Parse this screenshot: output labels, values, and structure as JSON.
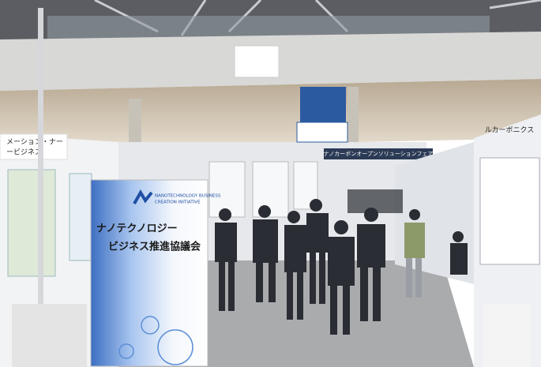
{
  "banner": {
    "logo": [
      "NANOTECHNOLOGY BUSINESS",
      "CREATION INITIATIVE"
    ],
    "title": [
      "ナノテクノロジー",
      "ビジネス推進協議会"
    ]
  },
  "signs": {
    "hanging": "ナノカーボンオープンソリューションフェア",
    "left_booth": [
      "メーション・ナー",
      "ービジネス"
    ],
    "right_booth": "ルカーボニクス"
  }
}
